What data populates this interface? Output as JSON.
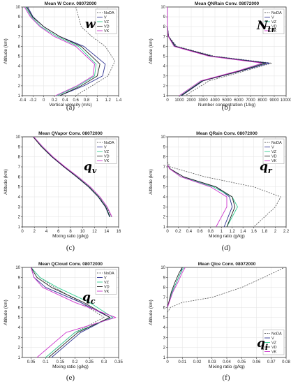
{
  "figure": {
    "legend_entries": [
      "NoDA",
      "V",
      "VZ",
      "VD",
      "VK"
    ],
    "series_colors": {
      "NoDA": "#666666",
      "V": "#2b2f8f",
      "VZ": "#2ecc8f",
      "VD": "#222222",
      "VK": "#cc33cc"
    },
    "series_dash": {
      "NoDA": "dashed",
      "V": "solid",
      "VZ": "solid",
      "VD": "solid",
      "VK": "solid"
    }
  },
  "chart_data": [
    {
      "type": "line",
      "sub": "(a)",
      "symbol": "w",
      "symbol_sub": "",
      "title": "Mean W Conv. 08072000",
      "xlabel": "Vertical velocity (m/s)",
      "ylabel": "Altitude (km)",
      "xlim": [
        -0.4,
        1.4
      ],
      "ylim": [
        1,
        10
      ],
      "xticks": [
        -0.4,
        -0.2,
        0,
        0.2,
        0.4,
        0.6,
        0.8,
        1,
        1.2,
        1.4
      ],
      "yticks": [
        1,
        2,
        3,
        4,
        5,
        6,
        7,
        8,
        9,
        10
      ],
      "legend": "top-right",
      "series": [
        {
          "name": "NoDA",
          "x": [
            0.6,
            0.65,
            0.7,
            0.9,
            1.15,
            1.33,
            1.2,
            0.9,
            0.6
          ],
          "y": [
            10,
            9,
            8,
            7,
            6,
            4.5,
            3,
            2,
            1
          ]
        },
        {
          "name": "V",
          "x": [
            -0.3,
            -0.2,
            0,
            0.3,
            0.75,
            1.15,
            1.1,
            0.75,
            0.3
          ],
          "y": [
            10,
            9,
            8,
            7,
            6,
            4.2,
            3,
            2,
            1
          ]
        },
        {
          "name": "VZ",
          "x": [
            -0.34,
            -0.23,
            -0.05,
            0.25,
            0.65,
            0.98,
            0.95,
            0.65,
            0.25
          ],
          "y": [
            10,
            9,
            8,
            7,
            6,
            4.2,
            3,
            2,
            1
          ]
        },
        {
          "name": "VD",
          "x": [
            -0.32,
            -0.21,
            0,
            0.3,
            0.7,
            1.05,
            1.0,
            0.7,
            0.3
          ],
          "y": [
            10,
            9,
            8,
            7,
            6,
            4.2,
            3,
            2,
            1
          ]
        },
        {
          "name": "VK",
          "x": [
            -0.36,
            -0.25,
            -0.07,
            0.2,
            0.6,
            0.95,
            0.92,
            0.62,
            0.22
          ],
          "y": [
            10,
            9,
            8,
            7,
            6,
            4.2,
            3,
            2,
            1
          ]
        }
      ]
    },
    {
      "type": "line",
      "sub": "(b)",
      "symbol": "N",
      "symbol_sub": "tr",
      "title": "Mean QNRain Conv. 08072000",
      "xlabel": "Number concentration (1/kg)",
      "ylabel": "Altitude (km)",
      "xlim": [
        0,
        10000
      ],
      "ylim": [
        1,
        10
      ],
      "xticks": [
        0,
        1000,
        2000,
        3000,
        4000,
        5000,
        6000,
        7000,
        8000,
        9000,
        10000
      ],
      "yticks": [
        1,
        2,
        3,
        4,
        5,
        6,
        7,
        8,
        9,
        10
      ],
      "legend": "top-right",
      "series": [
        {
          "name": "NoDA",
          "x": [
            0,
            0,
            100,
            800,
            4000,
            8800,
            6500,
            3500,
            1500
          ],
          "y": [
            10,
            8,
            7,
            6,
            5,
            4.3,
            3.5,
            2.5,
            1
          ]
        },
        {
          "name": "V",
          "x": [
            0,
            0,
            100,
            700,
            3800,
            8600,
            6200,
            3000,
            1200
          ],
          "y": [
            10,
            8,
            7,
            6,
            5,
            4.3,
            3.5,
            2.5,
            1
          ]
        },
        {
          "name": "VZ",
          "x": [
            0,
            0,
            80,
            600,
            3600,
            8100,
            6000,
            2900,
            1100
          ],
          "y": [
            10,
            8,
            7,
            6,
            5,
            4.3,
            3.5,
            2.5,
            1
          ]
        },
        {
          "name": "VD",
          "x": [
            0,
            0,
            90,
            650,
            3700,
            8300,
            6100,
            2950,
            1150
          ],
          "y": [
            10,
            8,
            7,
            6,
            5,
            4.3,
            3.5,
            2.5,
            1
          ]
        },
        {
          "name": "VK",
          "x": [
            0,
            0,
            70,
            550,
            3500,
            8000,
            5900,
            2800,
            1000
          ],
          "y": [
            10,
            8,
            7,
            6,
            5,
            4.3,
            3.5,
            2.5,
            1
          ]
        }
      ]
    },
    {
      "type": "line",
      "sub": "(c)",
      "symbol": "q",
      "symbol_sub": "v",
      "title": "Mean QVapor Conv. 08072000",
      "xlabel": "Mixing ratio (g/kg)",
      "ylabel": "Altitude (km)",
      "xlim": [
        0,
        16
      ],
      "ylim": [
        1,
        10
      ],
      "xticks": [
        0,
        2,
        4,
        6,
        8,
        10,
        12,
        14,
        16
      ],
      "yticks": [
        1,
        2,
        3,
        4,
        5,
        6,
        7,
        8,
        9,
        10
      ],
      "legend": "top-right",
      "series": [
        {
          "name": "NoDA",
          "x": [
            1.8,
            3.3,
            5,
            7,
            9.2,
            11.2,
            12.8,
            14,
            14.8
          ],
          "y": [
            10,
            9,
            8,
            7,
            6,
            5,
            4,
            3,
            2
          ]
        },
        {
          "name": "V",
          "x": [
            1.8,
            3.2,
            4.9,
            6.9,
            9.0,
            11.0,
            12.6,
            13.8,
            14.5
          ],
          "y": [
            10,
            9,
            8,
            7,
            6,
            5,
            4,
            3,
            2
          ]
        },
        {
          "name": "VZ",
          "x": [
            1.9,
            3.3,
            5.0,
            7.0,
            9.1,
            11.1,
            12.7,
            13.9,
            14.6
          ],
          "y": [
            10,
            9,
            8,
            7,
            6,
            5,
            4,
            3,
            2
          ]
        },
        {
          "name": "VD",
          "x": [
            1.8,
            3.2,
            4.95,
            6.95,
            9.05,
            11.05,
            12.65,
            13.85,
            14.55
          ],
          "y": [
            10,
            9,
            8,
            7,
            6,
            5,
            4,
            3,
            2
          ]
        },
        {
          "name": "VK",
          "x": [
            1.9,
            3.4,
            5.1,
            7.1,
            9.3,
            11.3,
            12.9,
            14.1,
            14.9
          ],
          "y": [
            10,
            9,
            8,
            7,
            6,
            5,
            4,
            3,
            2
          ]
        }
      ]
    },
    {
      "type": "line",
      "sub": "(d)",
      "symbol": "q",
      "symbol_sub": "r",
      "title": "Mean QRain Conv. 08072000",
      "xlabel": "Mixing ratio (g/kg)",
      "ylabel": "Altitude (km)",
      "xlim": [
        0,
        2.2
      ],
      "ylim": [
        1,
        10
      ],
      "xticks": [
        0,
        0.2,
        0.4,
        0.6,
        0.8,
        1,
        1.2,
        1.4,
        1.6,
        1.8,
        2,
        2.2
      ],
      "yticks": [
        1,
        2,
        3,
        4,
        5,
        6,
        7,
        8,
        9,
        10
      ],
      "legend": "top-right",
      "series": [
        {
          "name": "NoDA",
          "x": [
            0,
            0.05,
            0.7,
            1.6,
            2.1,
            2.0,
            1.6
          ],
          "y": [
            7.5,
            7,
            6,
            5,
            4,
            3,
            1
          ]
        },
        {
          "name": "V",
          "x": [
            0,
            0.05,
            0.3,
            0.9,
            1.15,
            1.2,
            1.05
          ],
          "y": [
            7.2,
            6.8,
            6,
            5,
            4,
            3,
            1
          ]
        },
        {
          "name": "VZ",
          "x": [
            0,
            0.05,
            0.25,
            0.85,
            1.2,
            1.3,
            1.1
          ],
          "y": [
            7.2,
            6.8,
            6,
            5,
            4,
            3,
            1
          ]
        },
        {
          "name": "VD",
          "x": [
            0,
            0.05,
            0.3,
            0.9,
            1.2,
            1.25,
            1.1
          ],
          "y": [
            7.2,
            6.8,
            6,
            5,
            4,
            3,
            1
          ]
        },
        {
          "name": "VK",
          "x": [
            0,
            0.04,
            0.25,
            0.8,
            1.1,
            1.1,
            0.9
          ],
          "y": [
            7.2,
            6.8,
            6,
            5,
            4,
            3,
            1
          ]
        }
      ]
    },
    {
      "type": "line",
      "sub": "(e)",
      "symbol": "q",
      "symbol_sub": "c",
      "title": "Mean QCloud Conv. 08072000",
      "xlabel": "Mixing ratio (g/kg)",
      "ylabel": "Altitude (km)",
      "xlim": [
        0.02,
        0.35
      ],
      "ylim": [
        1,
        10
      ],
      "xticks": [
        0.05,
        0.1,
        0.15,
        0.2,
        0.25,
        0.3,
        0.35
      ],
      "yticks": [
        1,
        2,
        3,
        4,
        5,
        6,
        7,
        8,
        9,
        10
      ],
      "legend": "top-right",
      "series": [
        {
          "name": "NoDA",
          "x": [
            0.05,
            0.08,
            0.13,
            0.22,
            0.3,
            0.2,
            0.1
          ],
          "y": [
            10,
            9,
            8,
            6.5,
            5,
            3.5,
            1
          ]
        },
        {
          "name": "V",
          "x": [
            0.05,
            0.06,
            0.1,
            0.22,
            0.32,
            0.22,
            0.12
          ],
          "y": [
            10,
            9,
            8,
            6.5,
            5,
            3.5,
            1
          ]
        },
        {
          "name": "VZ",
          "x": [
            0.05,
            0.08,
            0.14,
            0.25,
            0.33,
            0.2,
            0.1
          ],
          "y": [
            10,
            9,
            8,
            6.5,
            5,
            3.5,
            1
          ]
        },
        {
          "name": "VD",
          "x": [
            0.05,
            0.07,
            0.12,
            0.23,
            0.32,
            0.21,
            0.11
          ],
          "y": [
            10,
            9,
            8,
            6.5,
            5,
            3.5,
            1
          ]
        },
        {
          "name": "VK",
          "x": [
            0.05,
            0.06,
            0.09,
            0.2,
            0.34,
            0.17,
            0.07
          ],
          "y": [
            10,
            9,
            8,
            6.5,
            5,
            3.5,
            1
          ]
        }
      ]
    },
    {
      "type": "line",
      "sub": "(f)",
      "symbol": "q",
      "symbol_sub": "i",
      "title": "Mean QIce Conv. 08072000",
      "xlabel": "Mixing ratio (g/kg)",
      "ylabel": "Altitude (km)",
      "xlim": [
        0,
        0.08
      ],
      "ylim": [
        1,
        10
      ],
      "xticks": [
        0,
        0.01,
        0.02,
        0.03,
        0.04,
        0.05,
        0.06,
        0.07,
        0.08
      ],
      "yticks": [
        1,
        2,
        3,
        4,
        5,
        6,
        7,
        8,
        9,
        10
      ],
      "legend": "bottom-right",
      "series": [
        {
          "name": "NoDA",
          "x": [
            0,
            0.002,
            0.01,
            0.03,
            0.05,
            0.065,
            0.079
          ],
          "y": [
            5.5,
            6,
            6.5,
            7,
            8,
            9,
            10
          ]
        },
        {
          "name": "V",
          "x": [
            0,
            0.003,
            0.006,
            0.009,
            0.01
          ],
          "y": [
            6,
            7.5,
            8.5,
            9.5,
            10
          ]
        },
        {
          "name": "VZ",
          "x": [
            0,
            0.003,
            0.006,
            0.009,
            0.011
          ],
          "y": [
            6,
            7.5,
            8.5,
            9.5,
            10
          ]
        },
        {
          "name": "VD",
          "x": [
            0,
            0.0025,
            0.005,
            0.008,
            0.01
          ],
          "y": [
            6,
            7.5,
            8.5,
            9.5,
            10
          ]
        },
        {
          "name": "VK",
          "x": [
            0,
            0.0035,
            0.007,
            0.01,
            0.012
          ],
          "y": [
            6,
            7.5,
            8.5,
            9.5,
            10
          ]
        }
      ]
    }
  ]
}
